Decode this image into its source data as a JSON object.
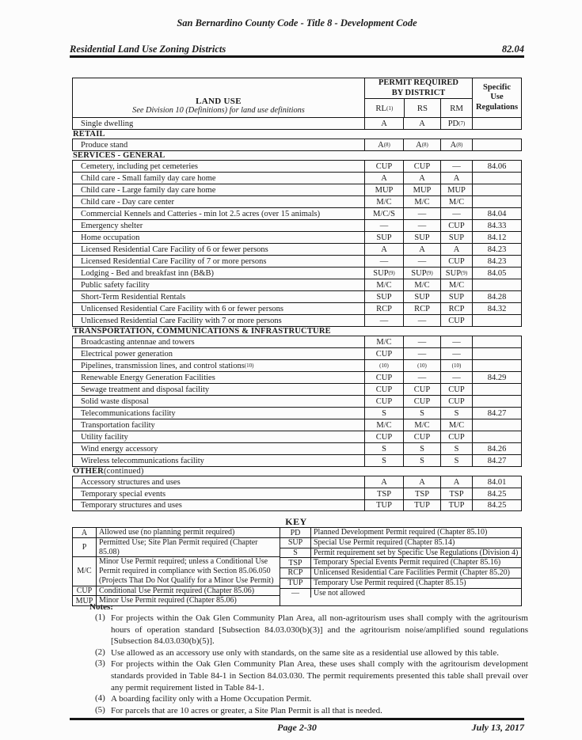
{
  "page": {
    "header_title": "San Bernardino County Code - Title 8 - Development Code",
    "section_title": "Residential Land Use Zoning Districts",
    "section_number": "82.04",
    "footer_page": "Page 2-30",
    "footer_date": "July 13, 2017"
  },
  "zoning_table": {
    "land_use_title": "LAND USE",
    "land_use_subtitle": "See Division 10 (Definitions) for land use definitions",
    "permit_header": "PERMIT REQUIRED BY DISTRICT",
    "district_columns": [
      "RL(1)",
      "RS",
      "RM"
    ],
    "specific_use_header": "Specific Use Regulations",
    "rows": [
      {
        "label": "Single dwelling",
        "rl": "A",
        "rs": "A",
        "rm": "PD(7)",
        "reg": ""
      },
      {
        "section": "RETAIL"
      },
      {
        "label": "Produce stand",
        "rl": "A(8)",
        "rs": "A(8)",
        "rm": "A(8)",
        "reg": ""
      },
      {
        "section": "SERVICES - GENERAL"
      },
      {
        "label": "Cemetery, including pet cemeteries",
        "rl": "CUP",
        "rs": "CUP",
        "rm": "—",
        "reg": "84.06"
      },
      {
        "label": "Child care - Small family day care home",
        "rl": "A",
        "rs": "A",
        "rm": "A",
        "reg": ""
      },
      {
        "label": "Child care - Large family day care home",
        "rl": "MUP",
        "rs": "MUP",
        "rm": "MUP",
        "reg": ""
      },
      {
        "label": "Child care - Day care center",
        "rl": "M/C",
        "rs": "M/C",
        "rm": "M/C",
        "reg": ""
      },
      {
        "label": "Commercial Kennels and Catteries - min lot 2.5 acres (over 15 animals)",
        "rl": "M/C/S",
        "rs": "—",
        "rm": "—",
        "reg": "84.04"
      },
      {
        "label": "Emergency shelter",
        "rl": "—",
        "rs": "—",
        "rm": "CUP",
        "reg": "84.33"
      },
      {
        "label": "Home occupation",
        "rl": "SUP",
        "rs": "SUP",
        "rm": "SUP",
        "reg": "84.12"
      },
      {
        "label": "Licensed Residential Care Facility of 6 or fewer persons",
        "rl": "A",
        "rs": "A",
        "rm": "A",
        "reg": "84.23"
      },
      {
        "label": "Licensed Residential Care Facility of 7 or more persons",
        "rl": "—",
        "rs": "—",
        "rm": "CUP",
        "reg": "84.23"
      },
      {
        "label": "Lodging - Bed and breakfast inn (B&B)",
        "rl": "SUP(9)",
        "rs": "SUP(9)",
        "rm": "SUP(9)",
        "reg": "84.05"
      },
      {
        "label": "Public safety facility",
        "rl": "M/C",
        "rs": "M/C",
        "rm": "M/C",
        "reg": ""
      },
      {
        "label": "Short-Term Residential Rentals",
        "rl": "SUP",
        "rs": "SUP",
        "rm": "SUP",
        "reg": "84.28"
      },
      {
        "label": "Unlicensed Residential Care Facility with 6 or fewer persons",
        "rl": "RCP",
        "rs": "RCP",
        "rm": "RCP",
        "reg": "84.32"
      },
      {
        "label": "Unlicensed Residential Care Facility with 7 or more persons",
        "rl": "—",
        "rs": "—",
        "rm": "CUP",
        "reg": ""
      },
      {
        "section": "TRANSPORTATION, COMMUNICATIONS & INFRASTRUCTURE"
      },
      {
        "label": "Broadcasting antennae and towers",
        "rl": "M/C",
        "rs": "—",
        "rm": "—",
        "reg": ""
      },
      {
        "label": "Electrical power generation",
        "rl": "CUP",
        "rs": "—",
        "rm": "—",
        "reg": ""
      },
      {
        "label": "Pipelines, transmission lines, and control stations (10)",
        "rl": "(10)",
        "rs": "(10)",
        "rm": "(10)",
        "reg": ""
      },
      {
        "label": "Renewable Energy Generation Facilities",
        "rl": "CUP",
        "rs": "—",
        "rm": "—",
        "reg": "84.29"
      },
      {
        "label": "Sewage treatment and disposal facility",
        "rl": "CUP",
        "rs": "CUP",
        "rm": "CUP",
        "reg": ""
      },
      {
        "label": "Solid waste disposal",
        "rl": "CUP",
        "rs": "CUP",
        "rm": "CUP",
        "reg": ""
      },
      {
        "label": "Telecommunications facility",
        "rl": "S",
        "rs": "S",
        "rm": "S",
        "reg": "84.27"
      },
      {
        "label": "Transportation facility",
        "rl": "M/C",
        "rs": "M/C",
        "rm": "M/C",
        "reg": ""
      },
      {
        "label": "Utility facility",
        "rl": "CUP",
        "rs": "CUP",
        "rm": "CUP",
        "reg": ""
      },
      {
        "label": "Wind energy accessory",
        "rl": "S",
        "rs": "S",
        "rm": "S",
        "reg": "84.26"
      },
      {
        "label": "Wireless telecommunications facility",
        "rl": "S",
        "rs": "S",
        "rm": "S",
        "reg": "84.27"
      },
      {
        "section": "OTHER",
        "section_suffix": " (continued)"
      },
      {
        "label": "Accessory structures and uses",
        "rl": "A",
        "rs": "A",
        "rm": "A",
        "reg": "84.01"
      },
      {
        "label": "Temporary special events",
        "rl": "TSP",
        "rs": "TSP",
        "rm": "TSP",
        "reg": "84.25"
      },
      {
        "label": "Temporary structures and uses",
        "rl": "TUP",
        "rs": "TUP",
        "rm": "TUP",
        "reg": "84.25"
      }
    ]
  },
  "key": {
    "title": "KEY",
    "left_rows": [
      {
        "abbr": "A",
        "desc": "Allowed use (no planning permit required)"
      },
      {
        "abbr": "P",
        "desc": "Permitted Use; Site Plan Permit required (Chapter 85.08)"
      },
      {
        "abbr": "M/C",
        "desc": "Minor Use Permit required; unless a Conditional Use Permit required in compliance with Section 85.06.050 (Projects That Do Not Qualify for a Minor Use Permit)",
        "tall": true
      },
      {
        "abbr": "CUP",
        "desc": "Conditional Use Permit required (Chapter 85.06)"
      },
      {
        "abbr": "MUP",
        "desc": "Minor Use Permit required (Chapter 85.06)"
      }
    ],
    "right_rows": [
      {
        "abbr": "PD",
        "desc": "Planned Development Permit required (Chapter 85.10)"
      },
      {
        "abbr": "SUP",
        "desc": "Special Use Permit required (Chapter 85.14)"
      },
      {
        "abbr": "S",
        "desc": "Permit requirement set by Specific Use Regulations (Division 4)"
      },
      {
        "abbr": "TSP",
        "desc": "Temporary Special Events Permit required (Chapter 85.16)"
      },
      {
        "abbr": "RCP",
        "desc": "Unlicensed Residential Care Facilities Permit (Chapter 85.20)"
      },
      {
        "abbr": "TUP",
        "desc": "Temporary Use Permit required (Chapter 85.15)"
      },
      {
        "abbr": "—",
        "desc": "Use not allowed"
      }
    ]
  },
  "notes": {
    "title": "Notes:",
    "items": [
      {
        "num": "(1)",
        "text": "For projects within the Oak Glen Community Plan Area, all non-agritourism uses shall comply with the agritourism hours of operation standard [Subsection 84.03.030(b)(3)] and the agritourism noise/amplified sound regulations [Subsection 84.03.030(b)(5)]."
      },
      {
        "num": "(2)",
        "text": "Use allowed as an accessory use only with standards, on the same site as a residential use allowed by this table."
      },
      {
        "num": "(3)",
        "text": "For projects within the Oak Glen Community Plan Area, these uses shall comply with the agritourism development standards provided in Table 84-1 in Section 84.03.030. The permit requirements presented this table shall prevail over any permit requirement listed in Table 84-1."
      },
      {
        "num": "(4)",
        "text": "A boarding facility only with a Home Occupation Permit."
      },
      {
        "num": "(5)",
        "text": "For parcels that are 10 acres or greater, a Site Plan Permit is all that is needed."
      }
    ]
  }
}
